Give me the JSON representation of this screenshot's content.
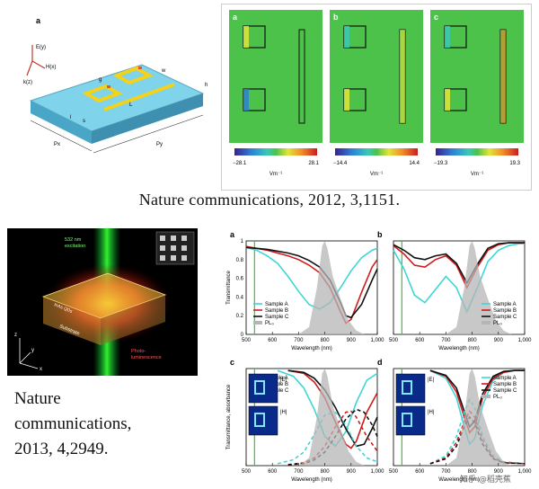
{
  "top_left": {
    "panel_label": "a",
    "axes": {
      "e": "E(y)",
      "h": "H(x)",
      "k": "k(z)"
    },
    "dims": {
      "g": "g",
      "w": "w",
      "h": "h",
      "l": "l",
      "s": "s",
      "L": "L",
      "Px": "Px",
      "Py": "Py"
    }
  },
  "top_right": {
    "maps": [
      {
        "label": "a",
        "min": "−28.1",
        "max": "28.1",
        "unit": "Vm⁻¹"
      },
      {
        "label": "b",
        "min": "−14.4",
        "max": "14.4",
        "unit": "Vm⁻¹"
      },
      {
        "label": "c",
        "min": "−19.3",
        "max": "19.3",
        "unit": "Vm⁻¹"
      }
    ]
  },
  "citation1": "Nature communications, 2012, 3,1151.",
  "bottom_left": {
    "excitation": "532 nm\nexcitation",
    "pl": "Photo-\nluminescence",
    "substrate": "Substrate",
    "layer": "InAs QDs",
    "axes": {
      "x": "x",
      "y": "y",
      "z": "z"
    }
  },
  "citation2_lines": [
    "Nature",
    "communications,",
    "2013, 4,2949."
  ],
  "chart_data": [
    {
      "type": "line",
      "panel": "a",
      "ylabel": "Transmittance",
      "xlabel": "Wavelength (nm)",
      "xlim": [
        500,
        1000
      ],
      "ylim": [
        0,
        1
      ],
      "xticks": [
        "500",
        "600",
        "700",
        "800",
        "900",
        "1,000"
      ],
      "yticks": [
        "0",
        "0.2",
        "0.4",
        "0.6",
        "0.8",
        "1"
      ],
      "legend": [
        "Sample A",
        "Sample B",
        "Sample C",
        "PL₀"
      ],
      "series": [
        {
          "name": "Sample A",
          "color": "#3fd6d6",
          "x": [
            500,
            540,
            580,
            620,
            660,
            700,
            740,
            780,
            820,
            860,
            900,
            940,
            980,
            1000
          ],
          "y": [
            0.93,
            0.9,
            0.84,
            0.76,
            0.62,
            0.46,
            0.32,
            0.27,
            0.34,
            0.5,
            0.68,
            0.82,
            0.9,
            0.92
          ]
        },
        {
          "name": "Sample B",
          "color": "#d11b1b",
          "x": [
            500,
            540,
            580,
            620,
            660,
            700,
            740,
            780,
            820,
            860,
            880,
            900,
            940,
            980,
            1000
          ],
          "y": [
            0.94,
            0.92,
            0.9,
            0.87,
            0.84,
            0.8,
            0.74,
            0.66,
            0.5,
            0.24,
            0.12,
            0.16,
            0.45,
            0.72,
            0.8
          ]
        },
        {
          "name": "Sample C",
          "color": "#111111",
          "x": [
            500,
            540,
            580,
            620,
            660,
            700,
            740,
            780,
            820,
            860,
            880,
            900,
            940,
            980,
            1000
          ],
          "y": [
            0.93,
            0.92,
            0.91,
            0.89,
            0.87,
            0.84,
            0.79,
            0.72,
            0.58,
            0.34,
            0.2,
            0.18,
            0.32,
            0.58,
            0.7
          ]
        },
        {
          "name": "PL₀",
          "color": "#b5b5b5",
          "fill": true,
          "x": [
            700,
            740,
            770,
            790,
            800,
            810,
            830,
            860,
            890,
            920,
            950
          ],
          "y": [
            0,
            0.08,
            0.5,
            0.95,
            1.0,
            0.92,
            0.62,
            0.38,
            0.15,
            0.04,
            0
          ]
        }
      ]
    },
    {
      "type": "line",
      "panel": "b",
      "xlabel": "Wavelength (nm)",
      "xlim": [
        500,
        1000
      ],
      "ylim": [
        0,
        1
      ],
      "xticks": [
        "500",
        "600",
        "700",
        "800",
        "900",
        "1,000"
      ],
      "legend": [
        "Sample A",
        "Sample B",
        "Sample C",
        "PL₀"
      ],
      "series": [
        {
          "name": "Sample A",
          "color": "#3fd6d6",
          "x": [
            500,
            540,
            580,
            620,
            660,
            700,
            740,
            780,
            820,
            860,
            900,
            940,
            980,
            1000
          ],
          "y": [
            0.9,
            0.7,
            0.42,
            0.34,
            0.48,
            0.62,
            0.5,
            0.24,
            0.5,
            0.78,
            0.9,
            0.95,
            0.97,
            0.97
          ]
        },
        {
          "name": "Sample B",
          "color": "#d11b1b",
          "x": [
            500,
            540,
            580,
            620,
            660,
            700,
            740,
            780,
            820,
            860,
            900,
            940,
            980,
            1000
          ],
          "y": [
            0.95,
            0.86,
            0.74,
            0.72,
            0.8,
            0.84,
            0.74,
            0.5,
            0.72,
            0.9,
            0.96,
            0.98,
            0.98,
            0.98
          ]
        },
        {
          "name": "Sample C",
          "color": "#111111",
          "x": [
            500,
            540,
            580,
            620,
            660,
            700,
            740,
            780,
            820,
            860,
            900,
            940,
            980,
            1000
          ],
          "y": [
            0.96,
            0.9,
            0.82,
            0.8,
            0.84,
            0.86,
            0.76,
            0.55,
            0.75,
            0.92,
            0.97,
            0.98,
            0.98,
            0.98
          ]
        },
        {
          "name": "PL₀",
          "color": "#b5b5b5",
          "fill": true,
          "x": [
            700,
            740,
            770,
            790,
            800,
            810,
            830,
            860,
            890,
            920,
            950
          ],
          "y": [
            0,
            0.08,
            0.5,
            0.95,
            1.0,
            0.92,
            0.62,
            0.38,
            0.15,
            0.04,
            0
          ]
        }
      ]
    },
    {
      "type": "line",
      "panel": "c",
      "ylabel": "Transmittance, absorbance",
      "xlabel": "Wavelength (nm)",
      "xlim": [
        500,
        1000
      ],
      "ylim": [
        0,
        1
      ],
      "xticks": [
        "500",
        "600",
        "700",
        "800",
        "900",
        "1,000"
      ],
      "legend": [
        "Sample A",
        "Sample B",
        "Sample C",
        "PL₀"
      ],
      "inset_labels": [
        "|E|",
        "|H|"
      ],
      "series": [
        {
          "name": "Sample A",
          "color": "#3fd6d6",
          "x": [
            620,
            680,
            720,
            760,
            800,
            840,
            880,
            920,
            960,
            1000
          ],
          "y": [
            0.98,
            0.92,
            0.8,
            0.58,
            0.3,
            0.2,
            0.35,
            0.65,
            0.88,
            0.95
          ]
        },
        {
          "name": "Sample B",
          "color": "#d11b1b",
          "x": [
            660,
            720,
            760,
            800,
            840,
            880,
            900,
            920,
            960,
            1000
          ],
          "y": [
            0.98,
            0.95,
            0.86,
            0.7,
            0.45,
            0.22,
            0.18,
            0.25,
            0.55,
            0.75
          ]
        },
        {
          "name": "Sample C",
          "color": "#111111",
          "x": [
            660,
            720,
            760,
            800,
            840,
            880,
            920,
            950,
            980,
            1000
          ],
          "y": [
            0.98,
            0.96,
            0.9,
            0.78,
            0.6,
            0.38,
            0.2,
            0.22,
            0.38,
            0.5
          ]
        },
        {
          "name": "Sample A absorbance",
          "color": "#3fd6d6",
          "dashed": true,
          "x": [
            620,
            680,
            720,
            760,
            800,
            840,
            880,
            920,
            960,
            1000
          ],
          "y": [
            0.02,
            0.06,
            0.14,
            0.32,
            0.52,
            0.55,
            0.42,
            0.2,
            0.08,
            0.04
          ]
        },
        {
          "name": "Sample B absorbance",
          "color": "#d11b1b",
          "dashed": true,
          "x": [
            660,
            720,
            760,
            800,
            840,
            880,
            900,
            920,
            960,
            1000
          ],
          "y": [
            0.01,
            0.03,
            0.08,
            0.2,
            0.4,
            0.55,
            0.56,
            0.5,
            0.3,
            0.15
          ]
        },
        {
          "name": "Sample C absorbance",
          "color": "#111111",
          "dashed": true,
          "x": [
            660,
            720,
            760,
            800,
            840,
            880,
            920,
            950,
            980,
            1000
          ],
          "y": [
            0.01,
            0.02,
            0.06,
            0.14,
            0.3,
            0.48,
            0.58,
            0.55,
            0.42,
            0.3
          ]
        },
        {
          "name": "PL₀",
          "color": "#b5b5b5",
          "fill": true,
          "x": [
            700,
            740,
            770,
            790,
            800,
            810,
            830,
            860,
            890,
            920,
            950
          ],
          "y": [
            0,
            0.08,
            0.5,
            0.95,
            1.0,
            0.92,
            0.62,
            0.38,
            0.15,
            0.04,
            0
          ]
        }
      ]
    },
    {
      "type": "line",
      "panel": "d",
      "xlabel": "Wavelength (nm)",
      "xlim": [
        500,
        1000
      ],
      "ylim": [
        0,
        1
      ],
      "xticks": [
        "500",
        "600",
        "700",
        "800",
        "900",
        "1,000"
      ],
      "legend": [
        "Sample A",
        "Sample B",
        "Sample C",
        "PL₀"
      ],
      "inset_labels": [
        "|E|",
        "|H|"
      ],
      "series": [
        {
          "name": "Sample A",
          "color": "#3fd6d6",
          "x": [
            640,
            700,
            740,
            770,
            790,
            810,
            840,
            880,
            920,
            960,
            1000
          ],
          "y": [
            0.98,
            0.9,
            0.7,
            0.4,
            0.22,
            0.28,
            0.62,
            0.88,
            0.96,
            0.98,
            0.98
          ]
        },
        {
          "name": "Sample B",
          "color": "#d11b1b",
          "x": [
            640,
            700,
            740,
            770,
            790,
            810,
            840,
            880,
            920,
            960,
            1000
          ],
          "y": [
            0.98,
            0.92,
            0.76,
            0.5,
            0.34,
            0.4,
            0.7,
            0.9,
            0.96,
            0.98,
            0.98
          ]
        },
        {
          "name": "Sample C",
          "color": "#111111",
          "x": [
            640,
            700,
            740,
            770,
            790,
            810,
            840,
            880,
            920,
            960,
            1000
          ],
          "y": [
            0.98,
            0.93,
            0.8,
            0.56,
            0.4,
            0.46,
            0.74,
            0.92,
            0.97,
            0.98,
            0.98
          ]
        },
        {
          "name": "Sample A absorbance",
          "color": "#3fd6d6",
          "dashed": true,
          "x": [
            640,
            700,
            740,
            770,
            790,
            810,
            840,
            880,
            920,
            1000
          ],
          "y": [
            0.02,
            0.1,
            0.3,
            0.55,
            0.68,
            0.6,
            0.3,
            0.1,
            0.04,
            0.02
          ]
        },
        {
          "name": "Sample B absorbance",
          "color": "#d11b1b",
          "dashed": true,
          "x": [
            640,
            700,
            740,
            770,
            790,
            810,
            840,
            880,
            920,
            1000
          ],
          "y": [
            0.02,
            0.08,
            0.24,
            0.45,
            0.56,
            0.5,
            0.26,
            0.08,
            0.03,
            0.02
          ]
        },
        {
          "name": "Sample C absorbance",
          "color": "#111111",
          "dashed": true,
          "x": [
            640,
            700,
            740,
            770,
            790,
            810,
            840,
            880,
            920,
            1000
          ],
          "y": [
            0.02,
            0.07,
            0.2,
            0.4,
            0.5,
            0.44,
            0.22,
            0.07,
            0.03,
            0.02
          ]
        },
        {
          "name": "PL₀",
          "color": "#b5b5b5",
          "fill": true,
          "x": [
            700,
            740,
            770,
            790,
            800,
            810,
            830,
            860,
            890,
            920,
            950
          ],
          "y": [
            0,
            0.08,
            0.5,
            0.95,
            1.0,
            0.92,
            0.62,
            0.38,
            0.15,
            0.04,
            0
          ]
        }
      ]
    }
  ],
  "watermark": "知乎 @稻壳蕉"
}
